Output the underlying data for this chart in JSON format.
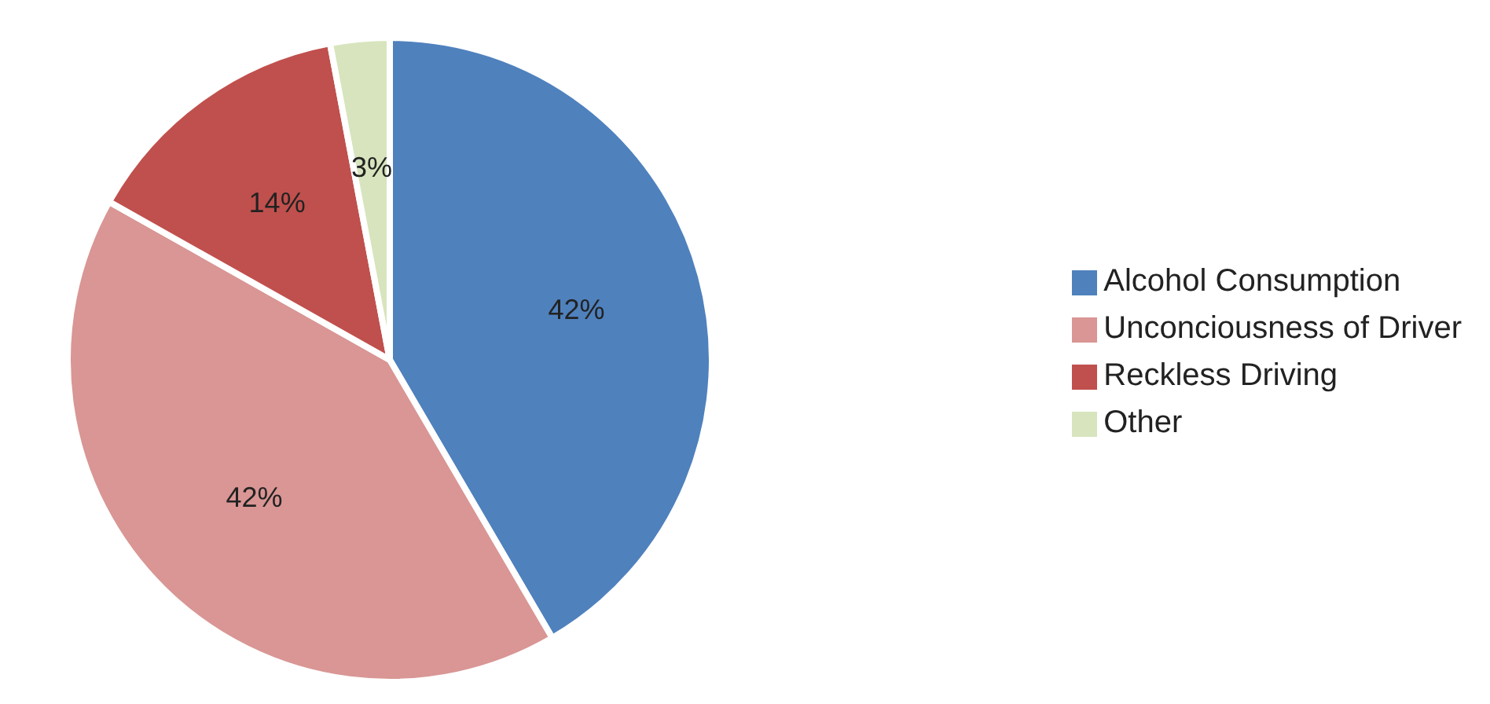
{
  "chart_data": {
    "type": "pie",
    "categories": [
      "Alcohol Consumption",
      "Unconciousness of Driver",
      "Reckless Driving",
      "Other"
    ],
    "values": [
      42,
      42,
      14,
      3
    ],
    "colors": [
      "#4f81bd",
      "#d99694",
      "#c0504d",
      "#d7e4bd"
    ],
    "value_labels": [
      "42%",
      "42%",
      "14%",
      "3%"
    ],
    "legend": "right"
  }
}
